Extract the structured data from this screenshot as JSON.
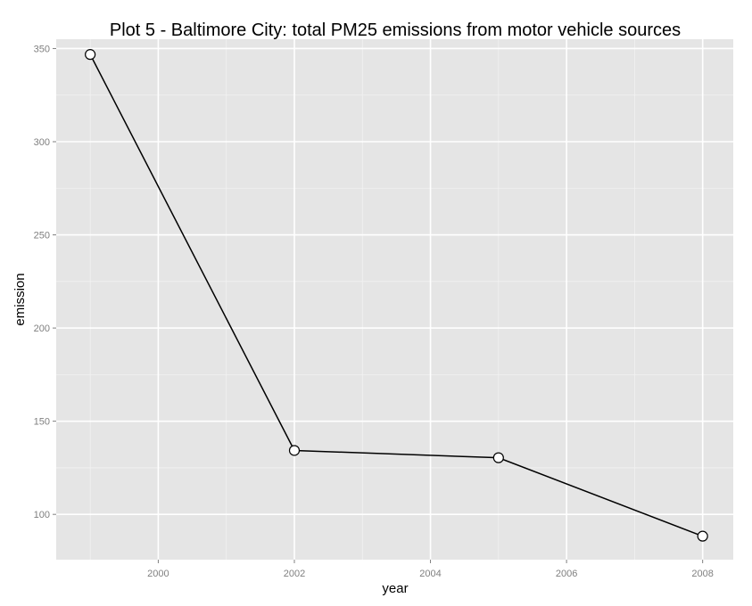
{
  "chart_data": {
    "type": "line",
    "title": "Plot 5 - Baltimore City: total PM25 emissions from motor vehicle sources",
    "xlabel": "year",
    "ylabel": "emission",
    "x": [
      1999,
      2002,
      2005,
      2008
    ],
    "series": [
      {
        "values": [
          346.8,
          134.3,
          130.4,
          88.3
        ]
      }
    ],
    "xlim": [
      1998.5,
      2008.45
    ],
    "ylim": [
      75.7,
      355.0
    ],
    "x_ticks": [
      2000,
      2002,
      2004,
      2006,
      2008
    ],
    "y_ticks": [
      100,
      150,
      200,
      250,
      300,
      350
    ],
    "grid": true,
    "colors": {
      "panel": "#e5e5e5",
      "grid_major": "#ffffff",
      "grid_minor": "#f2f2f2",
      "line": "#000000",
      "point_fill": "#ffffff",
      "point_stroke": "#000000"
    }
  }
}
